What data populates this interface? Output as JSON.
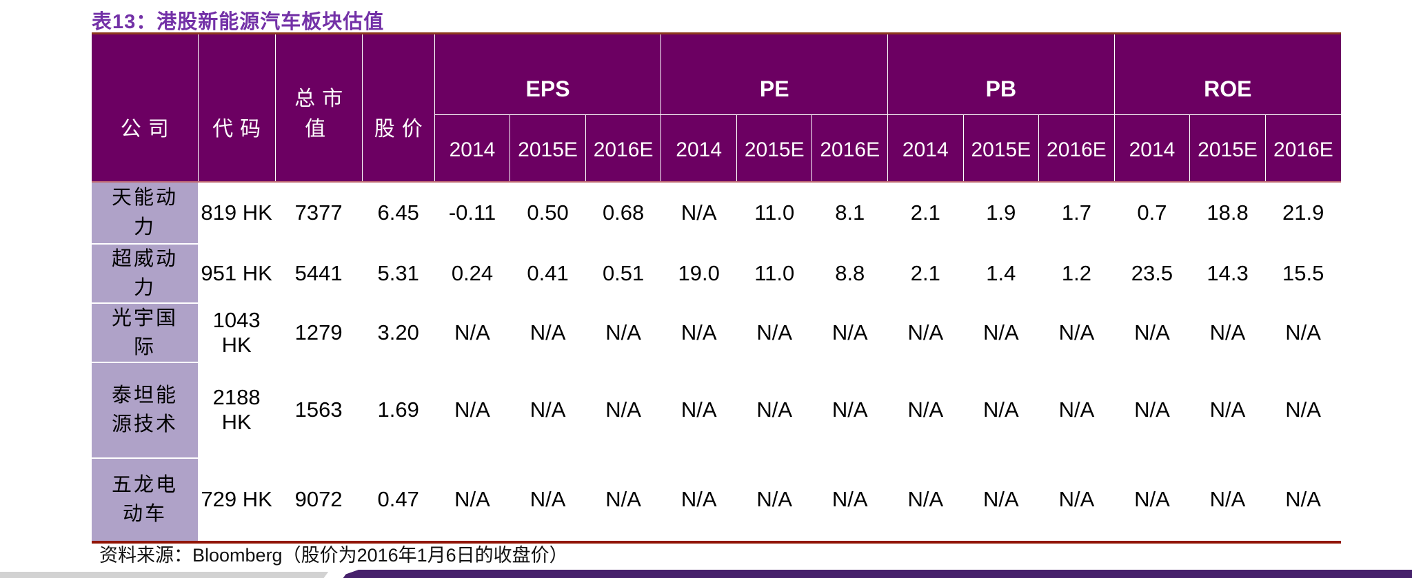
{
  "title": "表13：港股新能源汽车板块估值",
  "table": {
    "fixed_headers": [
      "公司",
      "代码",
      "总市值",
      "股价"
    ],
    "groups": [
      "EPS",
      "PE",
      "PB",
      "ROE"
    ],
    "years": [
      "2014",
      "2015E",
      "2016E"
    ],
    "rows": [
      {
        "company": "天能动力",
        "code": "819 HK",
        "market_cap": "7377",
        "price": "6.45",
        "eps": [
          "-0.11",
          "0.50",
          "0.68"
        ],
        "pe": [
          "N/A",
          "11.0",
          "8.1"
        ],
        "pb": [
          "2.1",
          "1.9",
          "1.7"
        ],
        "roe": [
          "0.7",
          "18.8",
          "21.9"
        ]
      },
      {
        "company": "超威动力",
        "code": "951 HK",
        "market_cap": "5441",
        "price": "5.31",
        "eps": [
          "0.24",
          "0.41",
          "0.51"
        ],
        "pe": [
          "19.0",
          "11.0",
          "8.8"
        ],
        "pb": [
          "2.1",
          "1.4",
          "1.2"
        ],
        "roe": [
          "23.5",
          "14.3",
          "15.5"
        ]
      },
      {
        "company": "光宇国际",
        "code": "1043 HK",
        "market_cap": "1279",
        "price": "3.20",
        "eps": [
          "N/A",
          "N/A",
          "N/A"
        ],
        "pe": [
          "N/A",
          "N/A",
          "N/A"
        ],
        "pb": [
          "N/A",
          "N/A",
          "N/A"
        ],
        "roe": [
          "N/A",
          "N/A",
          "N/A"
        ]
      },
      {
        "company": "泰坦能源技术",
        "code": "2188 HK",
        "market_cap": "1563",
        "price": "1.69",
        "eps": [
          "N/A",
          "N/A",
          "N/A"
        ],
        "pe": [
          "N/A",
          "N/A",
          "N/A"
        ],
        "pb": [
          "N/A",
          "N/A",
          "N/A"
        ],
        "roe": [
          "N/A",
          "N/A",
          "N/A"
        ]
      },
      {
        "company": "五龙电动车",
        "code": "729 HK",
        "market_cap": "9072",
        "price": "0.47",
        "eps": [
          "N/A",
          "N/A",
          "N/A"
        ],
        "pe": [
          "N/A",
          "N/A",
          "N/A"
        ],
        "pb": [
          "N/A",
          "N/A",
          "N/A"
        ],
        "roe": [
          "N/A",
          "N/A",
          "N/A"
        ]
      }
    ]
  },
  "source_note": "资料来源：Bloomberg（股价为2016年1月6日的收盘价）",
  "colors": {
    "title-color": "#7331A7",
    "header-bg": "#6C0062",
    "company-col-bg": "#AFA2C8",
    "table-top-border": "#8C3A1C",
    "header-bottom-line": "#C06A73",
    "table-bottom-border": "#911505",
    "bar-gray": "#D2D2D2",
    "bar-purple": "#46216B"
  }
}
